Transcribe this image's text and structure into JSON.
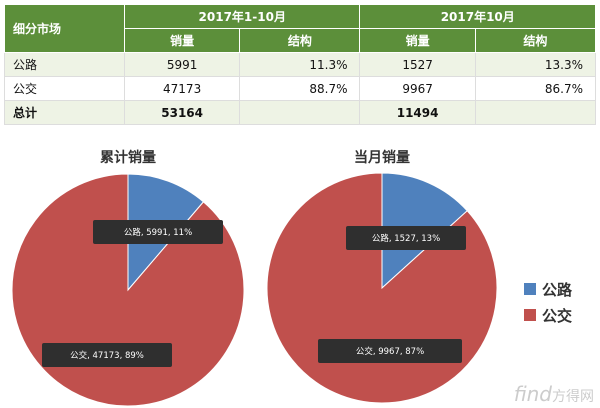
{
  "table": {
    "header_market": "细分市场",
    "period1": "2017年1-10月",
    "period2": "2017年10月",
    "sales_col": "销量",
    "struct_col": "结构",
    "rows": [
      {
        "label": "公路",
        "p1_sales": "5991",
        "p1_struct": "11.3%",
        "p2_sales": "1527",
        "p2_struct": "13.3%"
      },
      {
        "label": "公交",
        "p1_sales": "47173",
        "p1_struct": "88.7%",
        "p2_sales": "9967",
        "p2_struct": "86.7%"
      }
    ],
    "total": {
      "label": "总计",
      "p1_sales": "53164",
      "p2_sales": "11494"
    }
  },
  "chart_data": [
    {
      "type": "pie",
      "title": "累计销量",
      "slices": [
        {
          "name": "公路",
          "value": 5991,
          "label": "公路, 5991, 11%",
          "color": "#4f81bd"
        },
        {
          "name": "公交",
          "value": 47173,
          "label": "公交, 47173, 89%",
          "color": "#c0504d"
        }
      ],
      "legend": "right"
    },
    {
      "type": "pie",
      "title": "当月销量",
      "slices": [
        {
          "name": "公路",
          "value": 1527,
          "label": "公路, 1527, 13%",
          "color": "#4f81bd"
        },
        {
          "name": "公交",
          "value": 9967,
          "label": "公交, 9967, 87%",
          "color": "#c0504d"
        }
      ],
      "legend": "right"
    }
  ],
  "legend": [
    {
      "name": "公路",
      "color": "#4f81bd"
    },
    {
      "name": "公交",
      "color": "#c0504d"
    }
  ],
  "watermark": {
    "latin": "find",
    "cn": "方得网"
  }
}
